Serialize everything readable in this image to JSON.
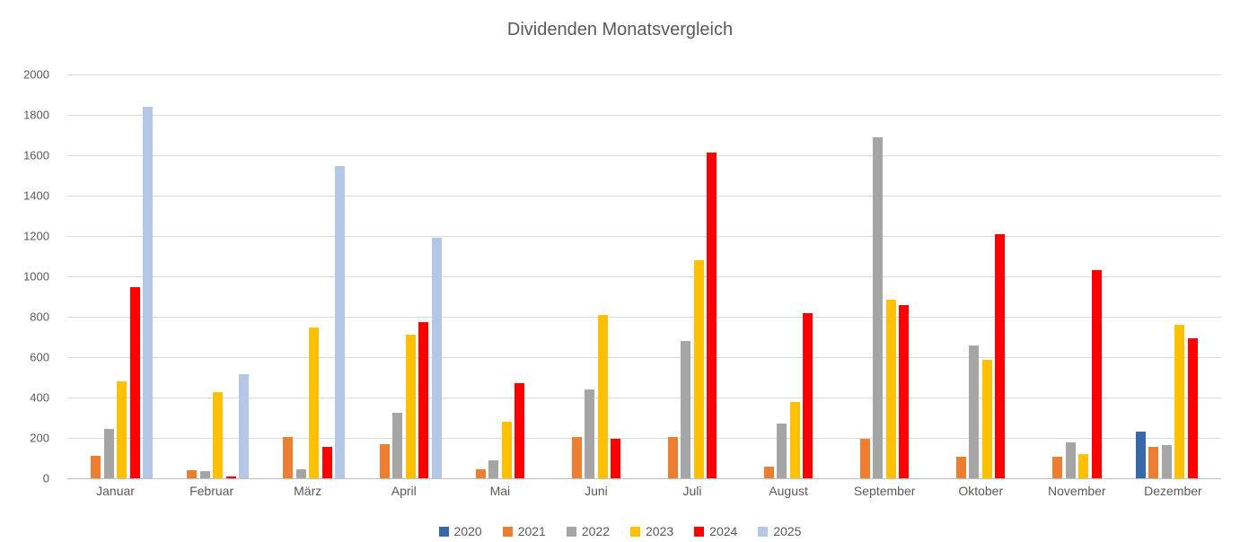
{
  "chart_data": {
    "type": "bar",
    "title": "Dividenden Monatsvergleich",
    "categories": [
      "Januar",
      "Februar",
      "März",
      "April",
      "Mai",
      "Juni",
      "Juli",
      "August",
      "September",
      "Oktober",
      "November",
      "Dezember"
    ],
    "series": [
      {
        "name": "2020",
        "color": "#3768a9",
        "values": [
          0,
          0,
          0,
          0,
          0,
          0,
          0,
          0,
          0,
          0,
          0,
          230
        ]
      },
      {
        "name": "2021",
        "color": "#ed7d31",
        "values": [
          110,
          40,
          205,
          170,
          45,
          205,
          205,
          60,
          195,
          105,
          105,
          155
        ]
      },
      {
        "name": "2022",
        "color": "#a5a5a5",
        "values": [
          245,
          35,
          45,
          325,
          90,
          440,
          680,
          270,
          1690,
          660,
          180,
          165
        ]
      },
      {
        "name": "2023",
        "color": "#ffc000",
        "values": [
          480,
          425,
          745,
          710,
          280,
          810,
          1080,
          380,
          885,
          585,
          120,
          760
        ]
      },
      {
        "name": "2024",
        "color": "#ff0000",
        "values": [
          945,
          10,
          155,
          775,
          470,
          195,
          1615,
          820,
          860,
          1210,
          1030,
          695
        ]
      },
      {
        "name": "2025",
        "color": "#b4c7e7",
        "values": [
          1840,
          515,
          1545,
          1190,
          0,
          0,
          0,
          0,
          0,
          0,
          0,
          0
        ]
      }
    ],
    "xlabel": "",
    "ylabel": "",
    "ylim": [
      0,
      2000
    ],
    "ytick_step": 200,
    "y_tick_labels": [
      "0",
      "200",
      "400",
      "600",
      "800",
      "1000",
      "1200",
      "1400",
      "1600",
      "1800",
      "2000"
    ],
    "grid": true,
    "legend_position": "bottom",
    "colors": {
      "gridline": "#d9d9d9",
      "axis_line": "#bfbfbf",
      "text": "#595959",
      "background": "#ffffff"
    }
  }
}
